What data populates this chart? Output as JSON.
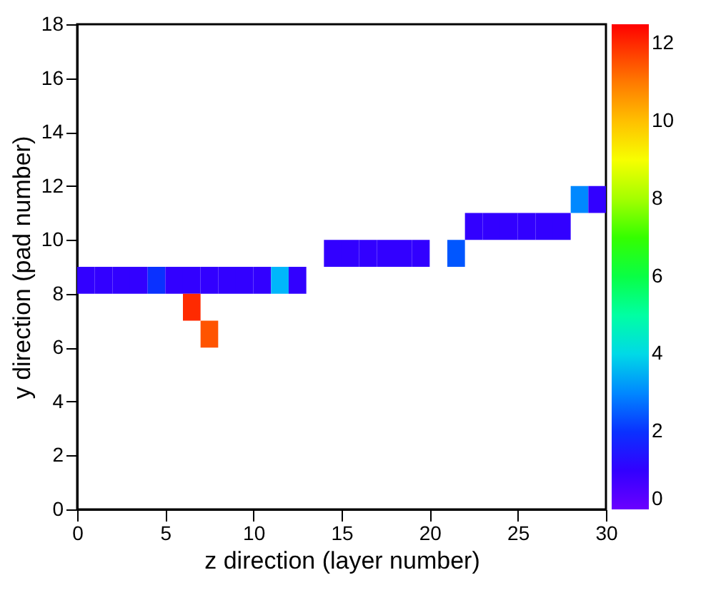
{
  "chart_data": {
    "type": "scatter",
    "xlabel": "z direction (layer number)",
    "ylabel": "y direction (pad number)",
    "marker": "square",
    "x": [
      0.5,
      1.5,
      2.5,
      3.5,
      4.5,
      5.5,
      6.5,
      7.5,
      8.5,
      9.5,
      10.5,
      11.5,
      12.5,
      6.5,
      7.5,
      14.5,
      15.5,
      16.5,
      17.5,
      18.5,
      19.5,
      21.5,
      22.5,
      23.5,
      24.5,
      25.5,
      26.5,
      27.5,
      28.5,
      29.5
    ],
    "values": [
      8.5,
      8.5,
      8.5,
      8.5,
      8.5,
      8.5,
      8.5,
      8.5,
      8.5,
      8.5,
      8.5,
      8.5,
      8.5,
      7.5,
      6.5,
      9.5,
      9.5,
      9.5,
      9.5,
      9.5,
      9.5,
      9.5,
      10.5,
      10.5,
      10.5,
      10.5,
      10.5,
      10.5,
      11.5,
      11.5
    ],
    "cvalues": [
      1,
      1,
      1,
      1,
      2,
      1,
      1,
      1,
      1,
      1,
      1,
      3.5,
      1,
      12,
      11.5,
      1,
      1,
      1,
      1,
      1,
      1,
      2.5,
      1,
      1,
      1,
      1,
      1,
      1,
      3,
      1
    ],
    "xlim": [
      0,
      30
    ],
    "xticks": [
      0,
      5,
      10,
      15,
      20,
      25,
      30
    ],
    "ylim": [
      0,
      18
    ],
    "yticks": [
      0,
      2,
      4,
      6,
      8,
      10,
      12,
      14,
      16,
      18
    ],
    "clim": [
      0,
      12.5
    ],
    "cticks": [
      0,
      2,
      4,
      6,
      8,
      10,
      12
    ]
  }
}
